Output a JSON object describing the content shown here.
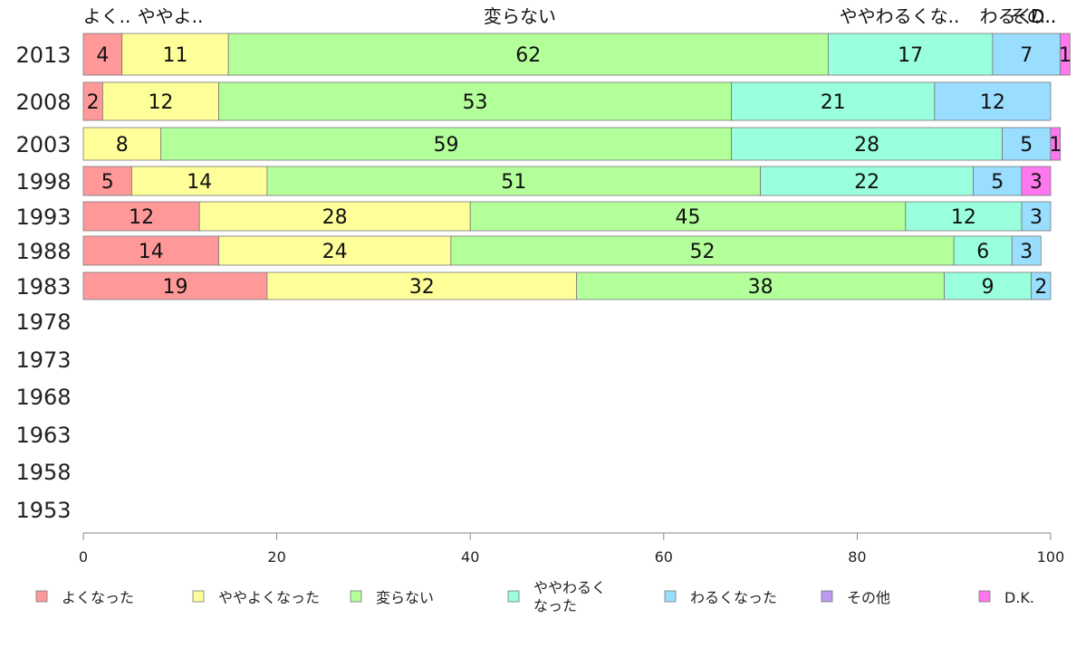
{
  "chart_data": {
    "type": "bar",
    "orientation": "horizontal",
    "stacked": true,
    "title": "",
    "xlabel": "",
    "ylabel": "",
    "xlim": [
      0,
      100
    ],
    "xticks": [
      0,
      20,
      40,
      60,
      80,
      100
    ],
    "grid": false,
    "legend_position": "bottom",
    "categories": [
      "2013",
      "2008",
      "2003",
      "1998",
      "1993",
      "1988",
      "1983",
      "1978",
      "1973",
      "1968",
      "1963",
      "1958",
      "1953"
    ],
    "top_labels": [
      "よく..",
      "ややよ..",
      "変らない",
      "ややわるくな..",
      "わるく..",
      "その..",
      "D.."
    ],
    "series": [
      {
        "name": "よくなった",
        "color": "#ff9999",
        "values": [
          4,
          2,
          0,
          5,
          12,
          14,
          19,
          null,
          null,
          null,
          null,
          null,
          null
        ]
      },
      {
        "name": "ややよくなった",
        "color": "#ffff99",
        "values": [
          11,
          12,
          8,
          14,
          28,
          24,
          32,
          null,
          null,
          null,
          null,
          null,
          null
        ]
      },
      {
        "name": "変らない",
        "color": "#b3ff99",
        "values": [
          62,
          53,
          59,
          51,
          45,
          52,
          38,
          null,
          null,
          null,
          null,
          null,
          null
        ]
      },
      {
        "name": "ややわるく\nなった",
        "color": "#99ffdd",
        "values": [
          17,
          21,
          28,
          22,
          12,
          6,
          9,
          null,
          null,
          null,
          null,
          null,
          null
        ]
      },
      {
        "name": "わるくなった",
        "color": "#99ddff",
        "values": [
          7,
          12,
          5,
          5,
          3,
          3,
          2,
          null,
          null,
          null,
          null,
          null,
          null
        ]
      },
      {
        "name": "その他",
        "color": "#bb99ee",
        "values": [
          0,
          0,
          0,
          0,
          0,
          0,
          0,
          null,
          null,
          null,
          null,
          null,
          null
        ]
      },
      {
        "name": "D.K.",
        "color": "#ff77ee",
        "values": [
          1,
          0,
          1,
          3,
          0,
          0,
          0,
          null,
          null,
          null,
          null,
          null,
          null
        ]
      }
    ]
  }
}
